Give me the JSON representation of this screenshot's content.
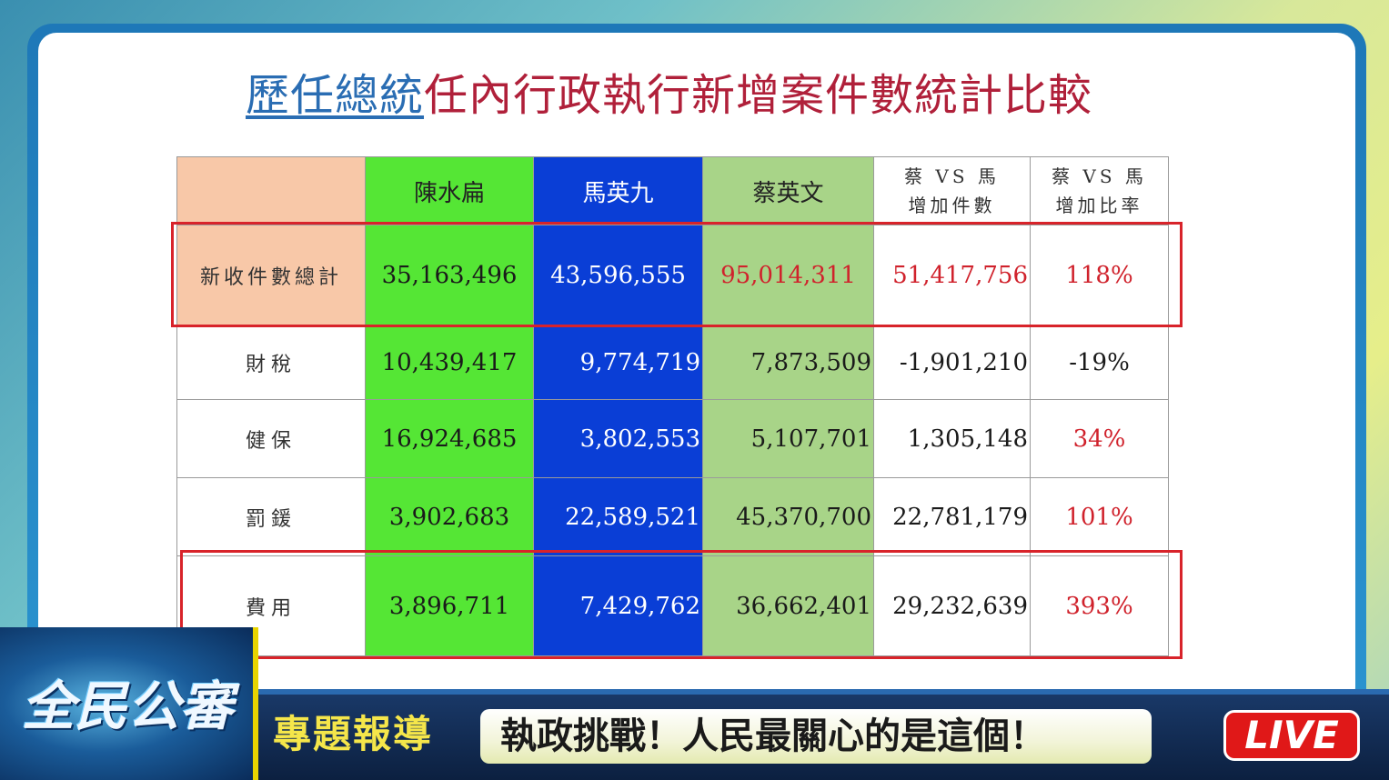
{
  "title": {
    "part1": "歷任總統",
    "part2": "任內行政執行新增案件數統計比較"
  },
  "table": {
    "headers": {
      "col0": "",
      "col1": "陳水扁",
      "col2": "馬英九",
      "col3": "蔡英文",
      "col4_line1": "蔡 VS 馬",
      "col4_line2": "增加件數",
      "col5_line1": "蔡 VS 馬",
      "col5_line2": "增加比率"
    },
    "rows": [
      {
        "label": "新收件數總計",
        "chen": "35,163,496",
        "ma": "43,596,555",
        "tsai": "95,014,311",
        "diff": "51,417,756",
        "ratio": "118%"
      },
      {
        "label": "財稅",
        "chen": "10,439,417",
        "ma": "9,774,719",
        "tsai": "7,873,509",
        "diff": "-1,901,210",
        "ratio": "-19%"
      },
      {
        "label": "健保",
        "chen": "16,924,685",
        "ma": "3,802,553",
        "tsai": "5,107,701",
        "diff": "1,305,148",
        "ratio": "34%"
      },
      {
        "label": "罰鍰",
        "chen": "3,902,683",
        "ma": "22,589,521",
        "tsai": "45,370,700",
        "diff": "22,781,179",
        "ratio": "101%"
      },
      {
        "label": "費用",
        "chen": "3,896,711",
        "ma": "7,429,762",
        "tsai": "36,662,401",
        "diff": "29,232,639",
        "ratio": "393%"
      }
    ]
  },
  "banner": {
    "logo": "全民公審",
    "label": "專題報導",
    "headline": "執政挑戰！人民最關心的是這個！",
    "live": "LIVE"
  },
  "colors": {
    "chen_column": "#55e635",
    "ma_column": "#0a3ed6",
    "tsai_column": "#a8d488",
    "highlight": "#d8232a",
    "title_blue": "#2a6db3",
    "title_red": "#b0203a"
  }
}
